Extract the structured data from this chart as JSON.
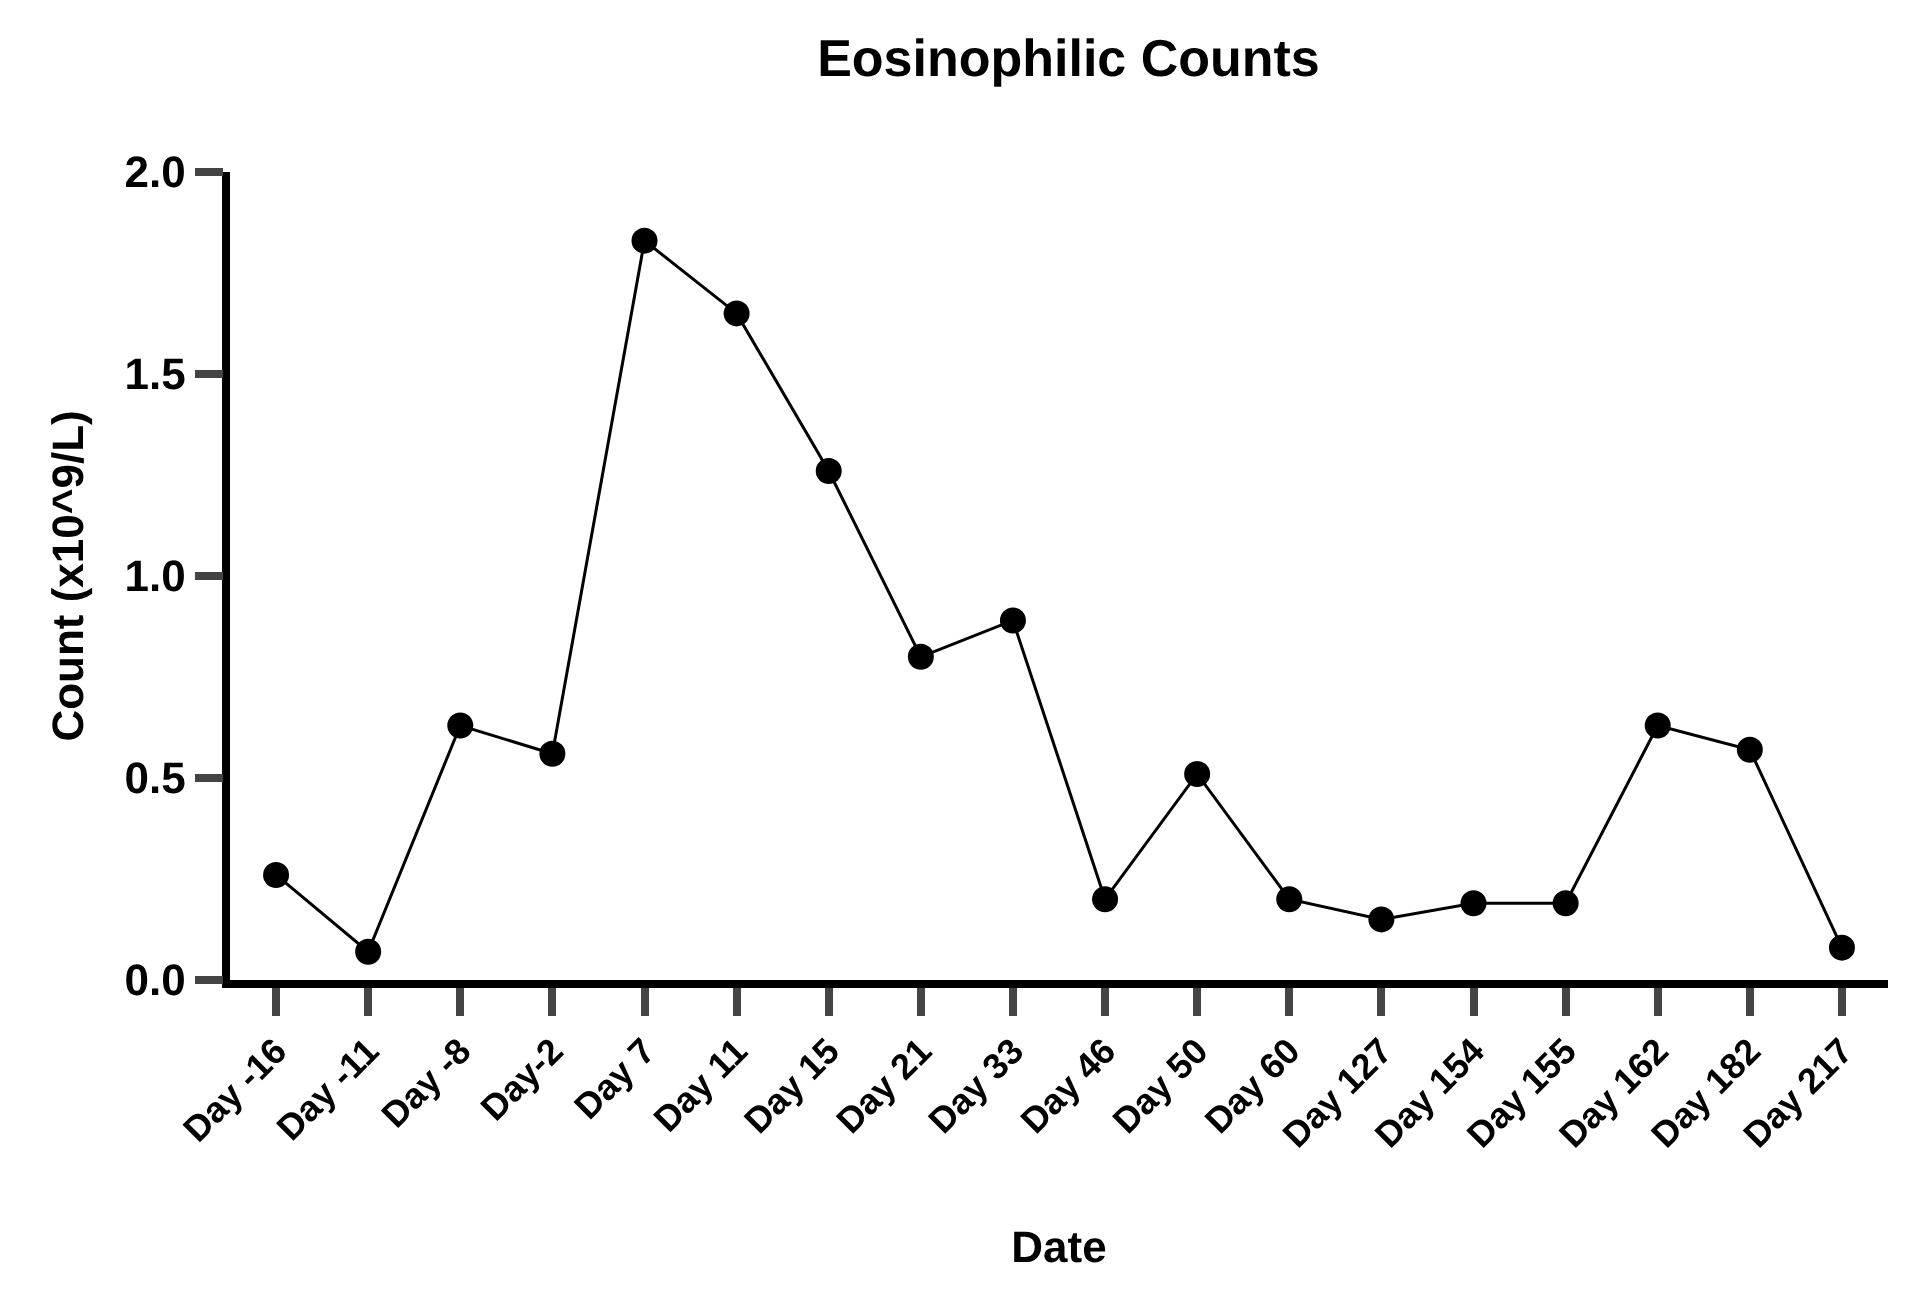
{
  "chart_data": {
    "type": "line",
    "title": "Eosinophilic Counts",
    "xlabel": "Date",
    "ylabel": "Count (x10^9/L)",
    "categories": [
      "Day -16",
      "Day -11",
      "Day -8",
      "Day-2",
      "Day 7",
      "Day 11",
      "Day 15",
      "Day 21",
      "Day 33",
      "Day 46",
      "Day 50",
      "Day 60",
      "Day 127",
      "Day 154",
      "Day 155",
      "Day 162",
      "Day 182",
      "Day 217"
    ],
    "series": [
      {
        "color": "#000000",
        "values": [
          0.26,
          0.07,
          0.63,
          0.56,
          1.83,
          1.65,
          1.26,
          0.8,
          0.89,
          0.2,
          0.51,
          0.2,
          0.15,
          0.19,
          0.19,
          0.63,
          0.57,
          0.08
        ]
      }
    ],
    "ylim": [
      0,
      2
    ],
    "yticks": [
      {
        "value": 0,
        "label": "0.0"
      },
      {
        "value": 0.5,
        "label": "0.5"
      },
      {
        "value": 1,
        "label": "1.0"
      },
      {
        "value": 1.5,
        "label": "1.5"
      },
      {
        "value": 2,
        "label": "2.0"
      }
    ],
    "marker": "circle",
    "line_style": "solid"
  }
}
